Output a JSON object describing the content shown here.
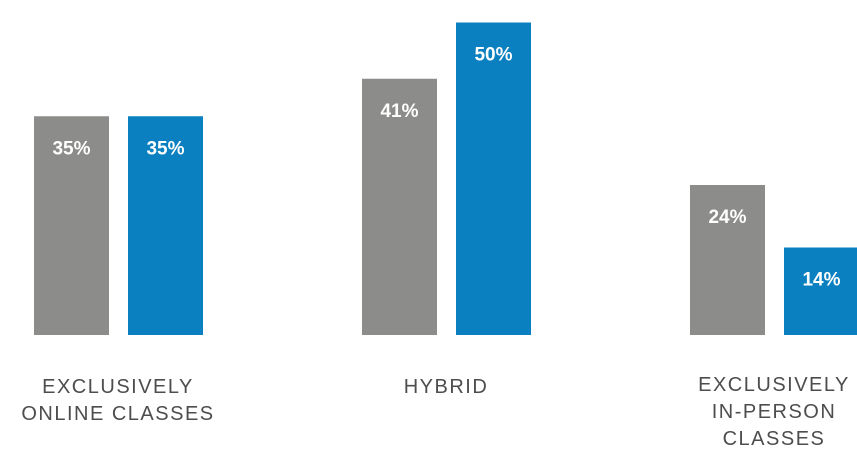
{
  "chart_data": {
    "type": "bar",
    "categories": [
      "EXCLUSIVELY ONLINE CLASSES",
      "HYBRID",
      "EXCLUSIVELY IN-PERSON CLASSES"
    ],
    "category_label_lines": [
      [
        "EXCLUSIVELY",
        "ONLINE CLASSES"
      ],
      [
        "HYBRID"
      ],
      [
        "EXCLUSIVELY",
        "IN-PERSON",
        "CLASSES"
      ]
    ],
    "series": [
      {
        "values": [
          35,
          41,
          24
        ],
        "labels": [
          "35%",
          "41%",
          "24%"
        ],
        "color": "#8c8d8b"
      },
      {
        "values": [
          35,
          50,
          14
        ],
        "labels": [
          "35%",
          "50%",
          "14%"
        ],
        "color": "#0a80c0"
      }
    ],
    "ylim": [
      0,
      52
    ],
    "grid": false,
    "legend": "none",
    "title": "",
    "xlabel": "",
    "ylabel": ""
  }
}
